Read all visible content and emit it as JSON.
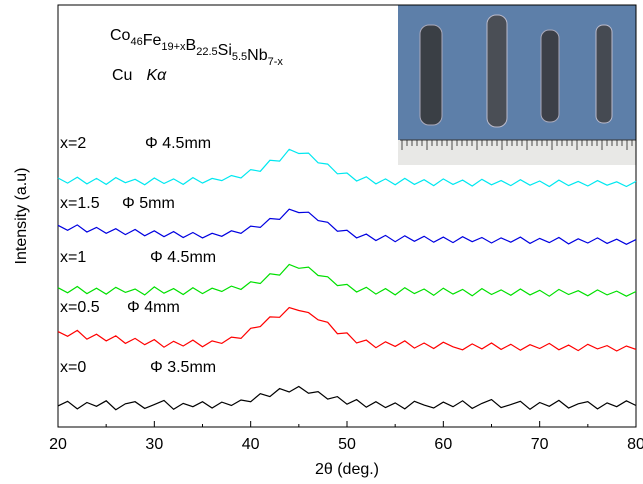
{
  "chart_data": {
    "type": "line",
    "title_parts": [
      [
        "Co",
        "46"
      ],
      [
        "Fe",
        "19+x"
      ],
      [
        "B",
        "22.5"
      ],
      [
        "Si",
        "5.5"
      ],
      [
        "Nb",
        "7-x"
      ]
    ],
    "annotation": [
      "Cu",
      "Kα"
    ],
    "xlabel": "2θ (deg.)",
    "ylabel": "Intensity (a.u)",
    "xlim": [
      20,
      80
    ],
    "xticks": [
      20,
      30,
      40,
      50,
      60,
      70,
      80
    ],
    "ylim": [
      0,
      100
    ],
    "x": [
      20,
      21,
      22,
      23,
      24,
      25,
      26,
      27,
      28,
      29,
      30,
      31,
      32,
      33,
      34,
      35,
      36,
      37,
      38,
      39,
      40,
      41,
      42,
      43,
      44,
      45,
      46,
      47,
      48,
      49,
      50,
      51,
      52,
      53,
      54,
      55,
      56,
      57,
      58,
      59,
      60,
      61,
      62,
      63,
      64,
      65,
      66,
      67,
      68,
      69,
      70,
      71,
      72,
      73,
      74,
      75,
      76,
      77,
      78,
      79,
      80
    ],
    "series": [
      {
        "name": "x=0",
        "diameter": "Φ 3.5mm",
        "color": "#000000",
        "values": [
          5.0,
          6.1,
          4.3,
          5.8,
          4.9,
          6.2,
          4.1,
          5.5,
          6.0,
          4.4,
          5.3,
          6.3,
          4.2,
          5.6,
          4.8,
          6.0,
          4.5,
          5.9,
          5.1,
          6.4,
          6.0,
          7.9,
          7.2,
          9.1,
          8.3,
          9.6,
          8.0,
          8.4,
          6.6,
          7.2,
          5.4,
          6.5,
          4.7,
          6.0,
          4.6,
          5.7,
          4.3,
          6.1,
          5.2,
          4.5,
          5.9,
          4.8,
          6.2,
          4.4,
          5.6,
          6.5,
          4.6,
          5.3,
          6.1,
          4.2,
          5.8,
          4.9,
          6.3,
          4.5,
          5.5,
          6.0,
          4.3,
          5.7,
          4.8,
          6.2,
          5.1
        ]
      },
      {
        "name": "x=0.5",
        "diameter": "Φ 4mm",
        "color": "#ff0000",
        "values": [
          22.6,
          21.5,
          22.9,
          20.8,
          22.0,
          20.4,
          21.6,
          19.8,
          21.0,
          19.5,
          20.7,
          18.9,
          20.3,
          19.2,
          20.6,
          19.0,
          20.4,
          19.8,
          21.3,
          21.0,
          23.4,
          23.8,
          26.1,
          26.0,
          28.3,
          27.6,
          27.1,
          25.4,
          24.8,
          22.1,
          22.3,
          19.9,
          20.6,
          18.8,
          20.2,
          19.1,
          20.4,
          18.7,
          19.9,
          18.6,
          20.1,
          19.0,
          18.3,
          19.7,
          18.5,
          19.9,
          18.4,
          19.6,
          18.2,
          19.5,
          18.6,
          19.8,
          18.3,
          19.4,
          18.1,
          19.6,
          18.5,
          19.3,
          18.0,
          19.2,
          18.4
        ]
      },
      {
        "name": "x=1",
        "diameter": "Φ 4.5mm",
        "color": "#00e000",
        "values": [
          33.0,
          31.8,
          33.3,
          31.6,
          32.9,
          31.5,
          33.1,
          31.9,
          32.7,
          31.3,
          33.2,
          31.7,
          32.8,
          31.4,
          33.0,
          31.6,
          32.9,
          32.1,
          33.4,
          32.6,
          34.4,
          34.0,
          36.3,
          36.0,
          38.5,
          37.6,
          37.9,
          35.9,
          35.6,
          33.5,
          33.8,
          32.0,
          33.1,
          31.5,
          32.8,
          31.3,
          33.0,
          31.6,
          32.7,
          31.2,
          32.9,
          31.5,
          32.6,
          31.1,
          32.8,
          31.4,
          32.5,
          31.2,
          32.7,
          31.3,
          32.4,
          31.0,
          32.6,
          31.4,
          32.3,
          31.1,
          32.5,
          31.3,
          32.2,
          31.0,
          32.1
        ]
      },
      {
        "name": "x=1.5",
        "diameter": "Φ 5mm",
        "color": "#0000e0",
        "values": [
          47.8,
          46.6,
          47.9,
          46.2,
          47.3,
          45.9,
          47.0,
          45.6,
          46.8,
          45.3,
          46.5,
          45.1,
          46.3,
          44.9,
          46.1,
          44.8,
          45.9,
          45.2,
          46.5,
          45.9,
          47.6,
          47.3,
          49.4,
          49.2,
          51.6,
          50.8,
          50.9,
          48.9,
          48.5,
          46.4,
          46.6,
          44.8,
          45.7,
          44.2,
          45.4,
          43.9,
          45.3,
          44.0,
          45.2,
          43.8,
          45.0,
          43.7,
          45.1,
          43.9,
          44.9,
          43.6,
          44.8,
          43.8,
          45.0,
          43.5,
          44.7,
          43.7,
          44.9,
          43.4,
          44.6,
          43.6,
          44.8,
          43.5,
          44.5,
          43.3,
          44.4
        ]
      },
      {
        "name": "x=2",
        "diameter": "Φ 4.5mm",
        "color": "#00e8f0",
        "values": [
          59.0,
          57.8,
          59.2,
          57.6,
          58.9,
          57.5,
          59.1,
          57.9,
          58.7,
          57.4,
          59.0,
          57.7,
          58.8,
          57.5,
          59.1,
          57.8,
          58.9,
          58.4,
          59.6,
          59.0,
          61.0,
          60.6,
          63.2,
          63.0,
          65.8,
          64.8,
          64.9,
          62.6,
          62.3,
          60.0,
          60.2,
          58.3,
          59.3,
          57.6,
          58.8,
          57.4,
          58.9,
          57.5,
          58.6,
          57.2,
          58.8,
          57.5,
          58.5,
          57.1,
          58.7,
          57.4,
          58.4,
          57.2,
          58.6,
          57.3,
          58.3,
          57.0,
          58.5,
          57.2,
          58.2,
          57.1,
          58.4,
          57.3,
          58.1,
          57.0,
          58.2
        ]
      }
    ]
  }
}
